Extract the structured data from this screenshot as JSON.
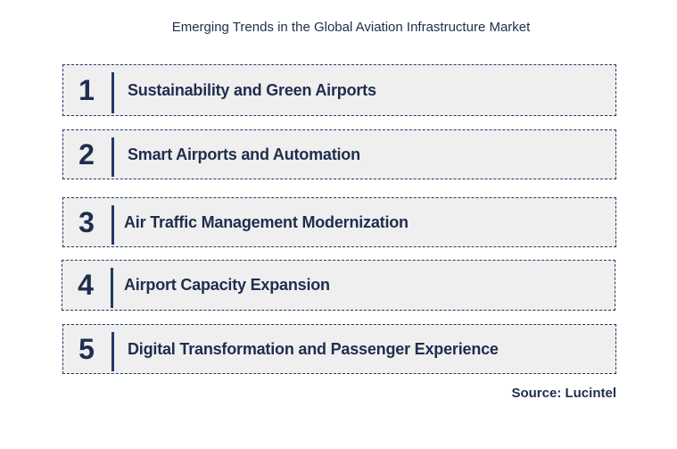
{
  "title": "Emerging Trends in the Global Aviation Infrastructure Market",
  "trends": [
    {
      "number": "1",
      "label": "Sustainability and Green Airports"
    },
    {
      "number": "2",
      "label": "Smart Airports and Automation"
    },
    {
      "number": "3",
      "label": "Air Traffic Management Modernization"
    },
    {
      "number": "4",
      "label": "Airport Capacity Expansion"
    },
    {
      "number": "5",
      "label": "Digital Transformation and Passenger Experience"
    }
  ],
  "source": "Source: Lucintel",
  "colors": {
    "text": "#1f2d4d",
    "accent": "#1f3a68",
    "box_fill": "#efefef"
  }
}
